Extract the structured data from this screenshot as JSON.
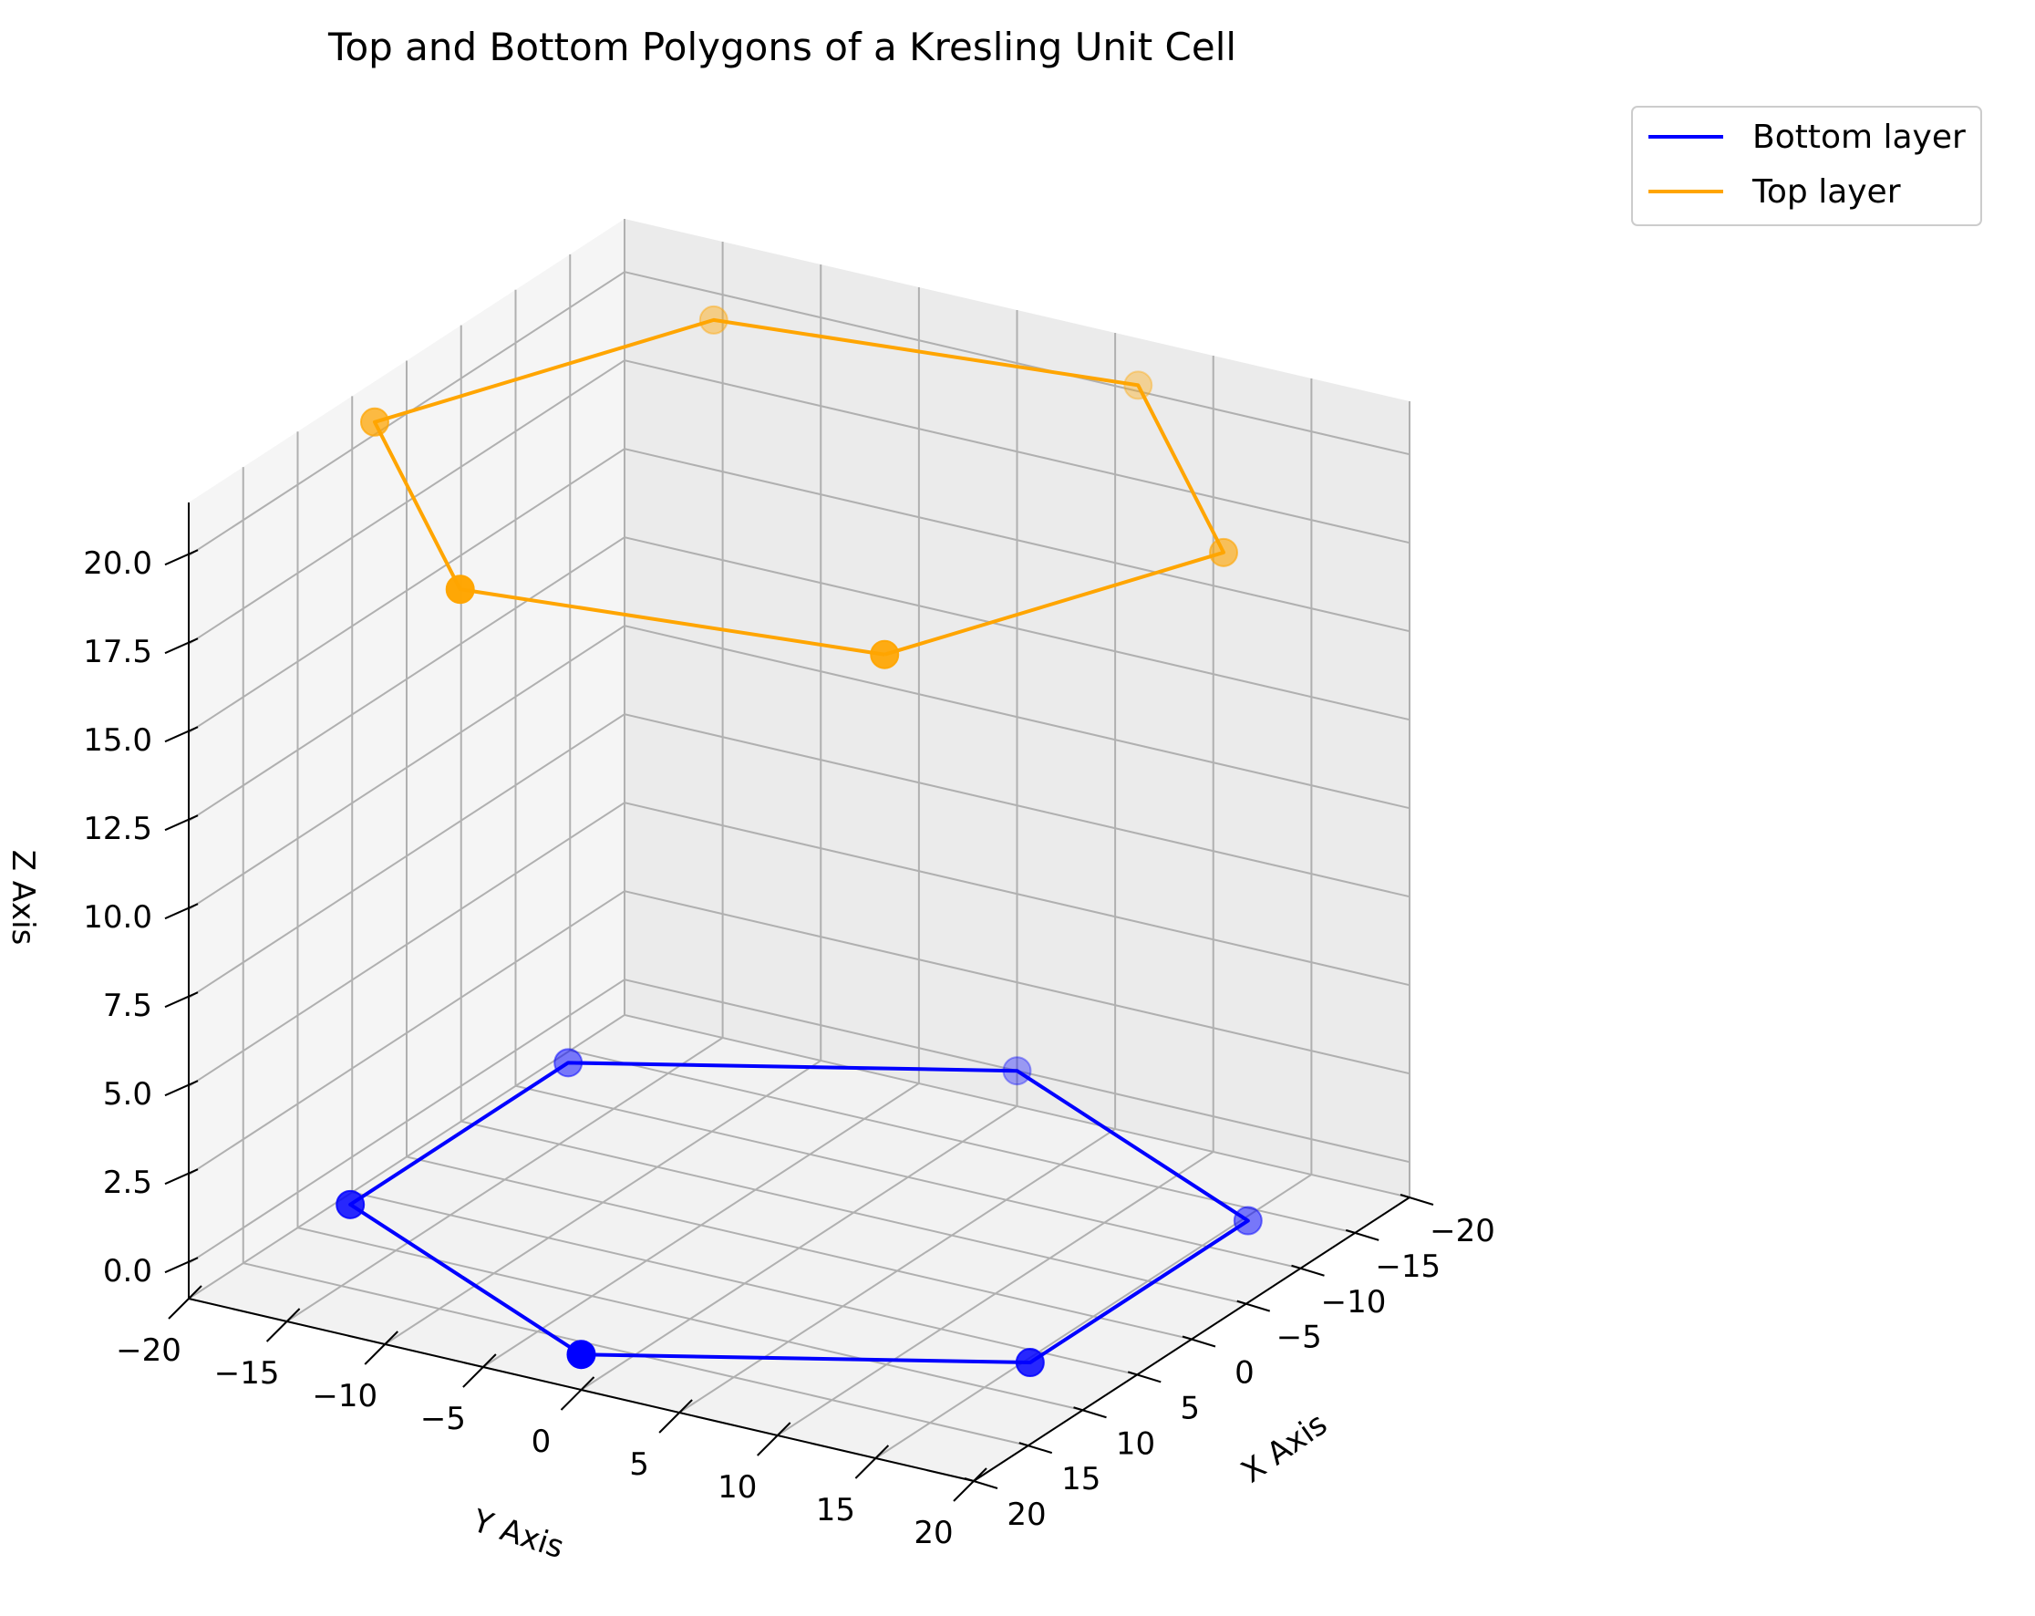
{
  "chart_data": {
    "type": "line3d",
    "title": "Top and Bottom Polygons of a Kresling Unit Cell",
    "xlabel": "X Axis",
    "ylabel": "Y Axis",
    "zlabel": "Z Axis",
    "xlim": [
      -20,
      20
    ],
    "ylim": [
      -20,
      20
    ],
    "zlim": [
      -1,
      21.5
    ],
    "x_ticks": [
      -20,
      -15,
      -10,
      -5,
      0,
      5,
      10,
      15,
      20
    ],
    "x_tick_labels": [
      "−20",
      "−15",
      "−10",
      "−5",
      "0",
      "5",
      "10",
      "15",
      "20"
    ],
    "y_ticks": [
      -20,
      -15,
      -10,
      -5,
      0,
      5,
      10,
      15,
      20
    ],
    "y_tick_labels": [
      "−20",
      "−15",
      "−10",
      "−5",
      "0",
      "5",
      "10",
      "15",
      "20"
    ],
    "z_ticks": [
      0,
      2.5,
      5,
      7.5,
      10,
      12.5,
      15,
      17.5,
      20
    ],
    "z_tick_labels": [
      "0.0",
      "2.5",
      "5.0",
      "7.5",
      "10.0",
      "12.5",
      "15.0",
      "17.5",
      "20.0"
    ],
    "legend_position": "outside-top-right",
    "series": [
      {
        "name": "Bottom layer",
        "color": "#0000ff",
        "closed": true,
        "points": [
          {
            "x": 20,
            "y": 0,
            "z": 0
          },
          {
            "x": 10,
            "y": 17.32,
            "z": 0
          },
          {
            "x": -10,
            "y": 17.32,
            "z": 0
          },
          {
            "x": -20,
            "y": 0,
            "z": 0
          },
          {
            "x": -10,
            "y": -17.32,
            "z": 0
          },
          {
            "x": 10,
            "y": -17.32,
            "z": 0
          }
        ]
      },
      {
        "name": "Top layer",
        "color": "#ffa500",
        "closed": true,
        "points": [
          {
            "x": 15.32,
            "y": 12.86,
            "z": 20.5
          },
          {
            "x": -3.47,
            "y": 19.7,
            "z": 20.5
          },
          {
            "x": -18.79,
            "y": 6.84,
            "z": 20.5
          },
          {
            "x": -15.32,
            "y": -12.86,
            "z": 20.5
          },
          {
            "x": 3.47,
            "y": -19.7,
            "z": 20.5
          },
          {
            "x": 18.79,
            "y": -6.84,
            "z": 20.5
          }
        ]
      }
    ]
  }
}
